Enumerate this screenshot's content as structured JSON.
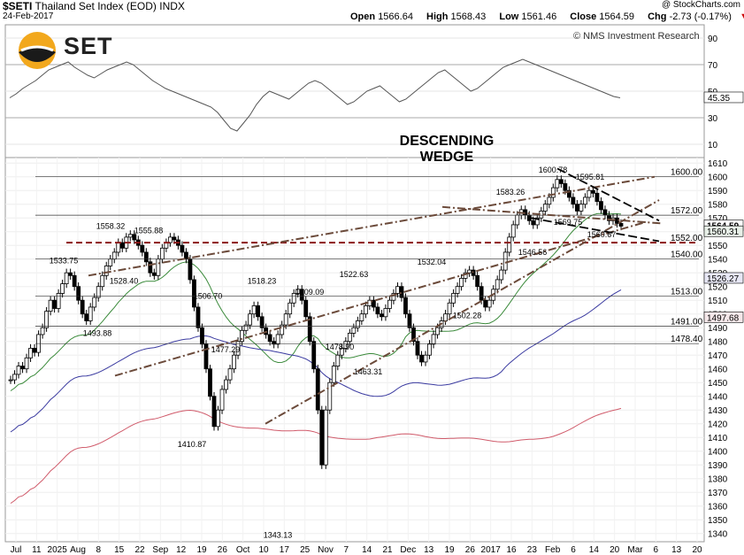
{
  "header": {
    "symbol": "$SETI",
    "name": "Thailand Set Index (EOD)",
    "exchange": "INDX",
    "date": "24-Feb-2017",
    "credit": "@ StockCharts.com",
    "open_label": "Open",
    "open": "1566.64",
    "high_label": "High",
    "high": "1568.43",
    "low_label": "Low",
    "low": "1561.46",
    "close_label": "Close",
    "close": "1564.59",
    "chg_label": "Chg",
    "chg": "-2.73 (-0.17%)",
    "chg_marker": "▼"
  },
  "logo": {
    "text": "SET"
  },
  "watermark": "© NMS Investment Research",
  "annotation": {
    "line1": "DESCENDING",
    "line2": "WEDGE"
  },
  "colors": {
    "candle": "#000000",
    "ma_green": "#3a8a3a",
    "ma_blue": "#3a3aa0",
    "ma_red": "#d05a6a",
    "resistance": "#8b1a1a",
    "trend": "#6b4a3a",
    "rsi": "#555555"
  },
  "chart_data": {
    "type": "candlestick",
    "rsi_panel": {
      "ticks": [
        "90",
        "70",
        "50",
        "30",
        "10"
      ],
      "last_value": "45.35",
      "ylim": [
        0,
        100
      ]
    },
    "price_panel": {
      "ylim": [
        1334,
        1614
      ],
      "y_ticks": [
        "1610",
        "1600",
        "1590",
        "1580",
        "1570",
        "1560",
        "1550",
        "1540",
        "1530",
        "1520",
        "1510",
        "1500",
        "1490",
        "1480",
        "1470",
        "1460",
        "1450",
        "1440",
        "1430",
        "1420",
        "1410",
        "1400",
        "1390",
        "1380",
        "1370",
        "1360",
        "1350",
        "1340"
      ],
      "x_ticks": [
        "Jul",
        "11",
        "2025",
        "Aug",
        "8",
        "15",
        "22",
        "Sep",
        "12",
        "19",
        "26",
        "Oct",
        "10",
        "17",
        "25",
        "Nov",
        "7",
        "14",
        "21",
        "Dec",
        "13",
        "19",
        "26",
        "2017",
        "16",
        "23",
        "Feb",
        "6",
        "14",
        "20",
        "Mar",
        "6",
        "13",
        "20"
      ],
      "price_labels": [
        "1558.32",
        "1555.88",
        "1533.75",
        "1528.40",
        "1493.88",
        "1410.87",
        "1506.70",
        "1518.23",
        "1477.29",
        "1509.09",
        "1522.63",
        "1478.90",
        "1463.31",
        "1343.13",
        "1532.04",
        "1502.28",
        "1546.56",
        "1583.26",
        "1600.78",
        "1595.81",
        "1569.75",
        "1560.67"
      ],
      "level_labels": [
        "1600.00",
        "1572.00",
        "1552.00",
        "1540.00",
        "1513.00",
        "1491.00",
        "1478.40"
      ],
      "right_badges": [
        "1564.59",
        "1560.31",
        "1526.27",
        "1497.68"
      ],
      "closes": [
        1452,
        1456,
        1462,
        1460,
        1468,
        1475,
        1472,
        1485,
        1490,
        1502,
        1510,
        1504,
        1515,
        1522,
        1530,
        1528,
        1520,
        1510,
        1500,
        1495,
        1505,
        1512,
        1520,
        1528,
        1535,
        1540,
        1545,
        1552,
        1548,
        1556,
        1558,
        1554,
        1550,
        1545,
        1538,
        1530,
        1528,
        1540,
        1548,
        1552,
        1556,
        1554,
        1550,
        1545,
        1540,
        1525,
        1505,
        1490,
        1478,
        1460,
        1440,
        1418,
        1430,
        1445,
        1452,
        1460,
        1470,
        1480,
        1488,
        1492,
        1500,
        1506,
        1498,
        1490,
        1485,
        1480,
        1478,
        1485,
        1492,
        1500,
        1508,
        1515,
        1518,
        1510,
        1498,
        1480,
        1460,
        1430,
        1390,
        1430,
        1450,
        1462,
        1470,
        1475,
        1480,
        1486,
        1490,
        1495,
        1500,
        1506,
        1510,
        1505,
        1500,
        1498,
        1504,
        1510,
        1515,
        1520,
        1512,
        1500,
        1490,
        1480,
        1470,
        1465,
        1470,
        1478,
        1485,
        1490,
        1495,
        1500,
        1508,
        1515,
        1520,
        1526,
        1530,
        1532,
        1528,
        1520,
        1510,
        1505,
        1510,
        1518,
        1525,
        1532,
        1545,
        1556,
        1565,
        1572,
        1576,
        1572,
        1568,
        1565,
        1570,
        1575,
        1580,
        1585,
        1592,
        1598,
        1595,
        1590,
        1585,
        1580,
        1575,
        1580,
        1585,
        1590,
        1588,
        1582,
        1576,
        1572,
        1568,
        1570,
        1566,
        1564
      ],
      "rsi": [
        45,
        48,
        52,
        55,
        58,
        62,
        66,
        68,
        70,
        72,
        68,
        65,
        62,
        60,
        63,
        66,
        68,
        70,
        72,
        70,
        66,
        62,
        58,
        55,
        52,
        50,
        48,
        46,
        44,
        42,
        40,
        38,
        34,
        28,
        22,
        20,
        26,
        32,
        40,
        46,
        50,
        48,
        46,
        44,
        48,
        52,
        56,
        58,
        56,
        52,
        48,
        44,
        40,
        42,
        46,
        50,
        52,
        54,
        50,
        46,
        42,
        44,
        48,
        52,
        56,
        60,
        64,
        66,
        62,
        58,
        54,
        50,
        52,
        56,
        60,
        64,
        68,
        70,
        72,
        74,
        72,
        70,
        68,
        66,
        64,
        62,
        60,
        58,
        56,
        54,
        52,
        50,
        48,
        46,
        45
      ]
    }
  }
}
